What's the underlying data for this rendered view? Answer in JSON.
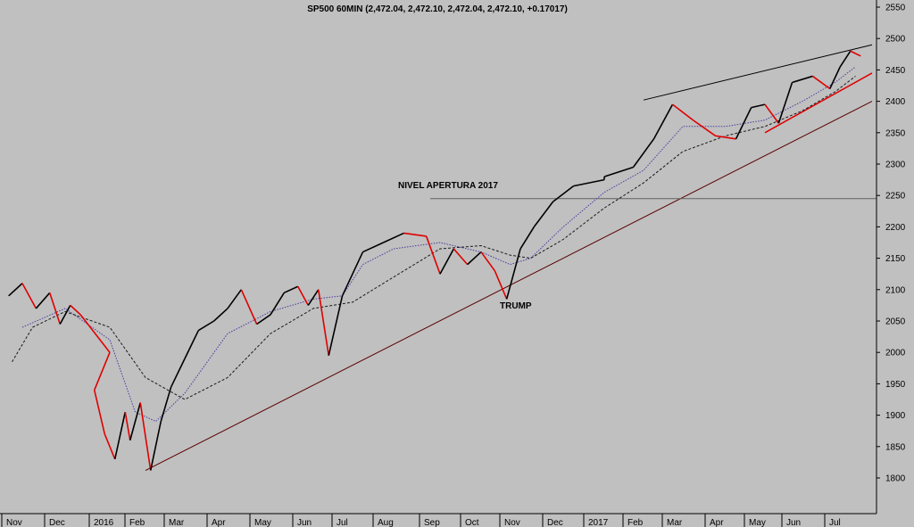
{
  "chart_data": {
    "type": "line",
    "title": "SP500 60MIN (2,472.04, 2,472.10, 2,472.04, 2,472.10, +0.17017)",
    "ylim": [
      1760,
      2560
    ],
    "y_ticks": [
      2550,
      2500,
      2450,
      2400,
      2350,
      2300,
      2250,
      2200,
      2150,
      2100,
      2050,
      2000,
      1950,
      1900,
      1850,
      1800
    ],
    "x_ticks": [
      "Nov",
      "Dec",
      "2016",
      "Feb",
      "Mar",
      "Apr",
      "May",
      "Jun",
      "Jul",
      "Aug",
      "Sep",
      "Oct",
      "Nov",
      "Dec",
      "2017",
      "Feb",
      "Mar",
      "Apr",
      "May",
      "Jun",
      "Jul"
    ],
    "x_period": [
      "Nov 2015",
      "Jul 2017"
    ],
    "price_series": {
      "color": "#000000",
      "down_color": "#e00000",
      "points": [
        [
          "Nov 2015",
          2090
        ],
        [
          "Nov 2015",
          2110
        ],
        [
          "Nov 2015",
          2070
        ],
        [
          "Dec 2015",
          2095
        ],
        [
          "Dec 2015",
          2045
        ],
        [
          "Dec 2015",
          2075
        ],
        [
          "Dec 2015",
          2060
        ],
        [
          "2016",
          2000
        ],
        [
          "Jan 2016",
          1940
        ],
        [
          "Jan 2016",
          1870
        ],
        [
          "Jan 2016",
          1830
        ],
        [
          "Jan 2016",
          1905
        ],
        [
          "Feb 2016",
          1860
        ],
        [
          "Feb 2016",
          1920
        ],
        [
          "Feb 2016",
          1812
        ],
        [
          "Feb 2016",
          1890
        ],
        [
          "Mar 2016",
          1945
        ],
        [
          "Mar 2016",
          1990
        ],
        [
          "Mar 2016",
          2035
        ],
        [
          "Apr 2016",
          2050
        ],
        [
          "Apr 2016",
          2070
        ],
        [
          "Apr 2016",
          2100
        ],
        [
          "May 2016",
          2045
        ],
        [
          "May 2016",
          2060
        ],
        [
          "May 2016",
          2095
        ],
        [
          "Jun 2016",
          2105
        ],
        [
          "Jun 2016",
          2075
        ],
        [
          "Jun 2016",
          2100
        ],
        [
          "Jun 2016",
          1995
        ],
        [
          "Jul 2016",
          2090
        ],
        [
          "Jul 2016",
          2160
        ],
        [
          "Aug 2016",
          2175
        ],
        [
          "Aug 2016",
          2190
        ],
        [
          "Sep 2016",
          2185
        ],
        [
          "Sep 2016",
          2125
        ],
        [
          "Sep 2016",
          2165
        ],
        [
          "Oct 2016",
          2140
        ],
        [
          "Oct 2016",
          2160
        ],
        [
          "Oct 2016",
          2130
        ],
        [
          "Nov 2016",
          2085
        ],
        [
          "Nov 2016",
          2165
        ],
        [
          "Nov 2016",
          2200
        ],
        [
          "Dec 2016",
          2240
        ],
        [
          "Dec 2016",
          2265
        ],
        [
          "2017",
          2275
        ],
        [
          "Jan 2017",
          2280
        ],
        [
          "Feb 2017",
          2295
        ],
        [
          "Feb 2017",
          2340
        ],
        [
          "Mar 2017",
          2395
        ],
        [
          "Mar 2017",
          2370
        ],
        [
          "Apr 2017",
          2345
        ],
        [
          "Apr 2017",
          2340
        ],
        [
          "May 2017",
          2390
        ],
        [
          "May 2017",
          2395
        ],
        [
          "May 2017",
          2365
        ],
        [
          "Jun 2017",
          2430
        ],
        [
          "Jun 2017",
          2440
        ],
        [
          "Jul 2017",
          2420
        ],
        [
          "Jul 2017",
          2455
        ],
        [
          "Jul 2017",
          2480
        ],
        [
          "Jul 2017",
          2472.1
        ]
      ]
    },
    "moving_averages": [
      {
        "style": "dotted",
        "color": "#4a3aa0",
        "points": [
          [
            "Nov 2015",
            2040
          ],
          [
            "Dec 2015",
            2070
          ],
          [
            "2016",
            2020
          ],
          [
            "Feb 2016",
            1905
          ],
          [
            "Feb 2016",
            1890
          ],
          [
            "Mar 2016",
            1935
          ],
          [
            "Apr 2016",
            2030
          ],
          [
            "May 2016",
            2065
          ],
          [
            "Jun 2016",
            2085
          ],
          [
            "Jul 2016",
            2090
          ],
          [
            "Jul 2016",
            2140
          ],
          [
            "Aug 2016",
            2165
          ],
          [
            "Sep 2016",
            2175
          ],
          [
            "Oct 2016",
            2160
          ],
          [
            "Nov 2016",
            2140
          ],
          [
            "Nov 2016",
            2150
          ],
          [
            "Dec 2016",
            2200
          ],
          [
            "2017",
            2255
          ],
          [
            "Feb 2017",
            2290
          ],
          [
            "Mar 2017",
            2360
          ],
          [
            "Apr 2017",
            2360
          ],
          [
            "May 2017",
            2370
          ],
          [
            "Jun 2017",
            2400
          ],
          [
            "Jul 2017",
            2430
          ],
          [
            "Jul 2017",
            2455
          ]
        ]
      },
      {
        "style": "dashed",
        "color": "#1a1a1a",
        "points": [
          [
            "Nov 2015",
            1985
          ],
          [
            "Nov 2015",
            2040
          ],
          [
            "Dec 2015",
            2065
          ],
          [
            "Jan 2016",
            2040
          ],
          [
            "Feb 2016",
            1960
          ],
          [
            "Mar 2016",
            1925
          ],
          [
            "Apr 2016",
            1960
          ],
          [
            "May 2016",
            2030
          ],
          [
            "Jun 2016",
            2070
          ],
          [
            "Jul 2016",
            2080
          ],
          [
            "Aug 2016",
            2120
          ],
          [
            "Sep 2016",
            2165
          ],
          [
            "Oct 2016",
            2170
          ],
          [
            "Nov 2016",
            2155
          ],
          [
            "Nov 2016",
            2150
          ],
          [
            "Dec 2016",
            2180
          ],
          [
            "2017",
            2230
          ],
          [
            "Feb 2017",
            2270
          ],
          [
            "Mar 2017",
            2320
          ],
          [
            "Apr 2017",
            2345
          ],
          [
            "May 2017",
            2360
          ],
          [
            "Jun 2017",
            2385
          ],
          [
            "Jul 2017",
            2415
          ],
          [
            "Jul 2017",
            2440
          ]
        ]
      }
    ],
    "trend_lines": [
      {
        "from": [
          "Feb 2016",
          1812
        ],
        "to": [
          "Jul 2017",
          2400
        ],
        "color": "#5a0000"
      },
      {
        "from": [
          "Feb 2017",
          2402
        ],
        "to": [
          "Jul 2017",
          2490
        ],
        "color": "#000000"
      },
      {
        "from": [
          "May 2017",
          2350
        ],
        "to": [
          "Jul 2017",
          2445
        ],
        "color": "#e00000"
      }
    ],
    "horizontal_lines": [
      {
        "y": 2245,
        "from": "Sep 2016",
        "color": "#606060"
      }
    ],
    "annotations": [
      {
        "text": "NIVEL APERTURA 2017",
        "at": [
          "Aug 2016",
          2262
        ]
      },
      {
        "text": "TRUMP",
        "at": [
          "Nov 2016",
          2070
        ]
      }
    ],
    "grid": false
  }
}
